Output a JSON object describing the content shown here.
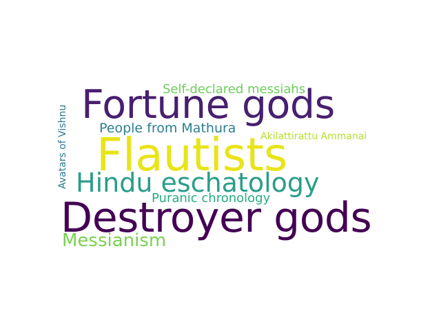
{
  "words": [
    {
      "text": "Fortune gods",
      "color": "#481f70"
    },
    {
      "text": "Flautists",
      "color": "#e8e419"
    },
    {
      "text": "Destroyer gods",
      "color": "#440154"
    },
    {
      "text": "Hindu eschatology",
      "color": "#2a9d8a"
    },
    {
      "text": "Self-declared messiahs",
      "color": "#6ccd5a"
    },
    {
      "text": "People from Mathura",
      "color": "#2c7e8e"
    },
    {
      "text": "Akilattirattu Ammanai",
      "color": "#b5de2b"
    },
    {
      "text": "Puranic chronology",
      "color": "#25ac82"
    },
    {
      "text": "Messianism",
      "color": "#7ad151"
    },
    {
      "text": "Avatars of Vishnu",
      "color": "#2a788e"
    }
  ]
}
